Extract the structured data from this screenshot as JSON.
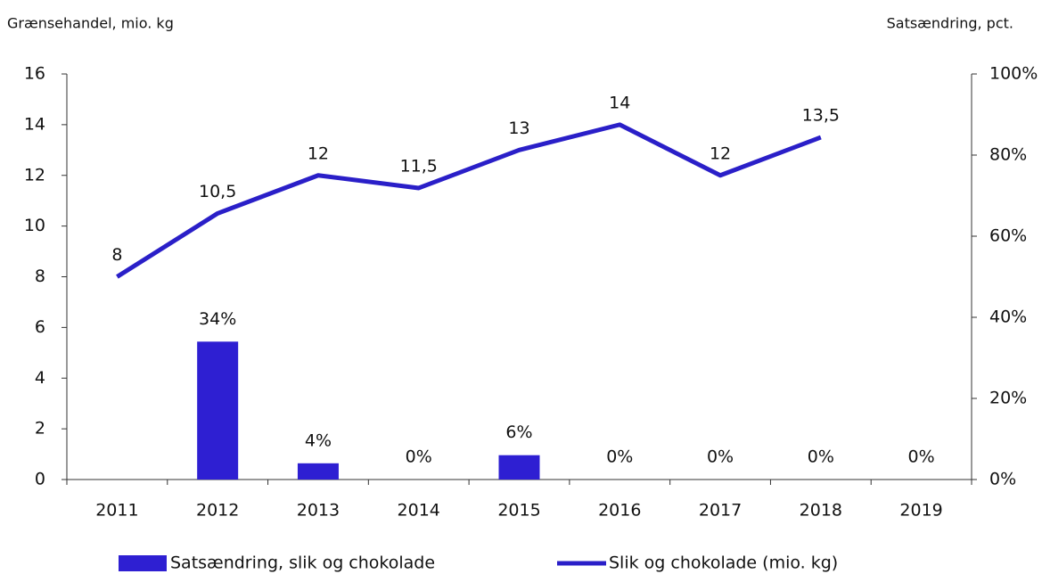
{
  "chart_data": {
    "type": "combo",
    "y_axis_label": "Grænsehandel, mio. kg",
    "y2_axis_label": "Satsændring, pct.",
    "categories": [
      "2011",
      "2012",
      "2013",
      "2014",
      "2015",
      "2016",
      "2017",
      "2018",
      "2019"
    ],
    "series": [
      {
        "name": "Satsændring, slik og chokolade",
        "type": "bar",
        "axis": "y2",
        "color": "#2e1fd2",
        "values": [
          null,
          34,
          4,
          0,
          6,
          0,
          0,
          0,
          0
        ],
        "value_labels": [
          null,
          "34%",
          "4%",
          "0%",
          "6%",
          "0%",
          "0%",
          "0%",
          "0%"
        ]
      },
      {
        "name": "Slik og chokolade (mio. kg)",
        "type": "line",
        "color": "#2a1fc8",
        "values": [
          8,
          10.5,
          12,
          11.5,
          13,
          14,
          12,
          13.5,
          null
        ],
        "value_labels": [
          "8",
          "10,5",
          "12",
          "11,5",
          "13",
          "14",
          "12",
          "13,5",
          null
        ]
      }
    ],
    "ylim": [
      0,
      16
    ],
    "yticks": [
      0,
      2,
      4,
      6,
      8,
      10,
      12,
      14,
      16
    ],
    "y2lim": [
      0,
      100
    ],
    "y2ticks": [
      {
        "value": 0,
        "label": "0%"
      },
      {
        "value": 20,
        "label": "20%"
      },
      {
        "value": 40,
        "label": "40%"
      },
      {
        "value": 60,
        "label": "60%"
      },
      {
        "value": 80,
        "label": "80%"
      },
      {
        "value": 100,
        "label": "100%"
      }
    ],
    "legend": "bottom"
  }
}
